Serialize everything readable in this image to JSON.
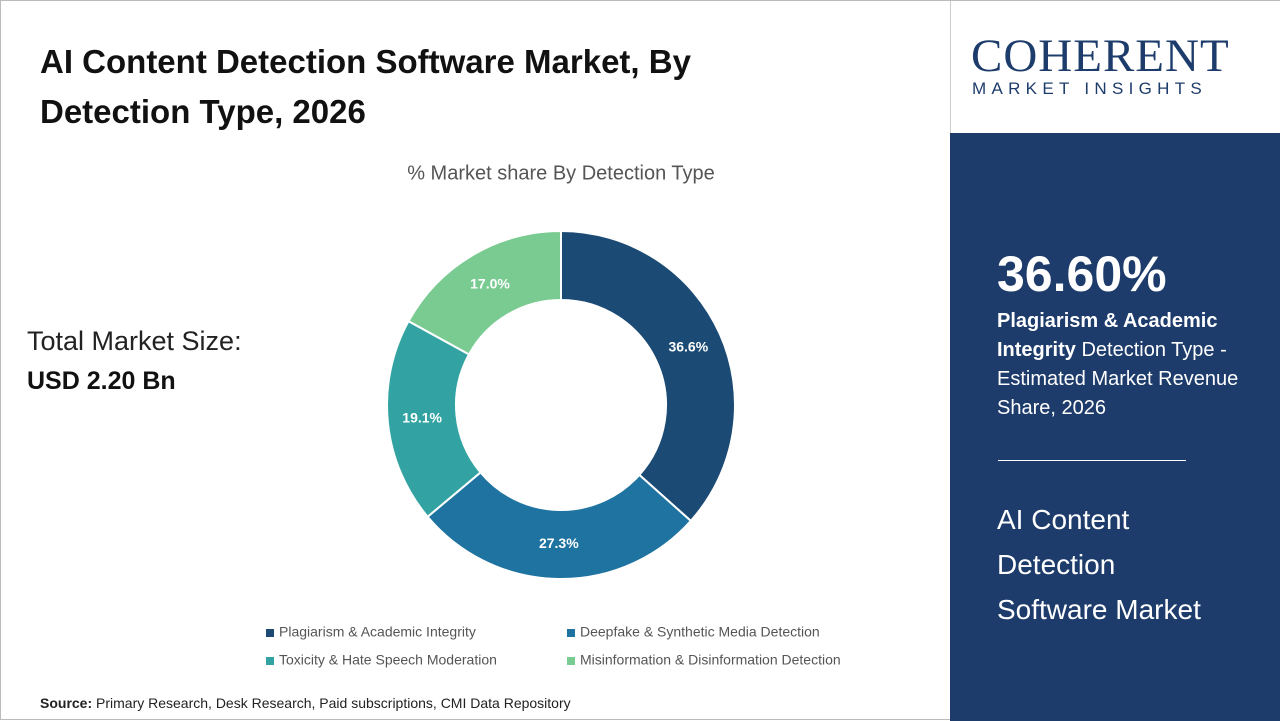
{
  "chart_data": {
    "type": "donut",
    "title": "AI Content Detection Software Market, By Detection Type, 2026",
    "subtitle": "% Market share By Detection Type",
    "categories": [
      "Plagiarism & Academic Integrity",
      "Deepfake & Synthetic Media Detection",
      "Toxicity & Hate Speech Moderation",
      "Misinformation & Disinformation Detection"
    ],
    "values": [
      36.6,
      27.3,
      19.1,
      17
    ],
    "value_labels": [
      "36.6%",
      "27.3%",
      "19.1%",
      "17.0%"
    ],
    "colors": [
      "#1b4a74",
      "#1f73a0",
      "#32a3a2",
      "#79cb92"
    ]
  },
  "market_size": {
    "label": "Total Market Size:",
    "value": "USD 2.20 Bn"
  },
  "source": {
    "label": "Source:",
    "text": "Primary Research, Desk Research, Paid subscriptions, CMI Data Repository"
  },
  "logo": {
    "name": "COHERENT",
    "tagline": "MARKET INSIGHTS"
  },
  "sidebar": {
    "highlight": "36.60%",
    "segment": "Plagiarism & Academic Integrity",
    "description": "Detection Type - Estimated Market Revenue Share, 2026",
    "market_lines": [
      "AI Content",
      "Detection",
      "Software Market"
    ]
  }
}
